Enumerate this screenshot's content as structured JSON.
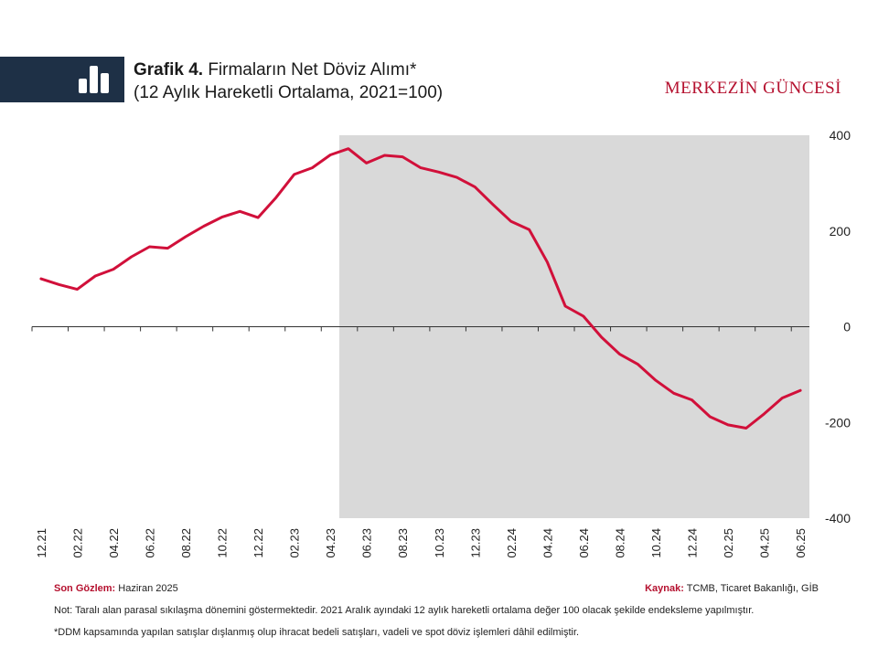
{
  "header": {
    "title_bold": "Grafik 4.",
    "title_rest": " Firmaların Net Döviz Alımı*",
    "subtitle": "(12 Aylık Hareketli Ortalama, 2021=100)",
    "brand": "MERKEZİN GÜNCESİ"
  },
  "footer": {
    "last_obs_label": "Son Gözlem:",
    "last_obs_value": " Haziran 2025",
    "source_label": "Kaynak:",
    "source_value": " TCMB, Ticaret Bakanlığı, GİB",
    "note": "Not: Taralı alan parasal sıkılaşma dönemini göstermektedir. 2021 Aralık ayındaki 12 aylık hareketli ortalama değer 100 olacak şekilde endeksleme yapılmıştır.",
    "footnote": "*DDM kapsamında yapılan satışlar dışlanmış olup ihracat bedeli satışları, vadeli ve spot döviz işlemleri dâhil edilmiştir."
  },
  "colors": {
    "line": "#d1103a",
    "shade": "#d9d9d9",
    "header_bar": "#1e3046",
    "brand": "#b5112f"
  },
  "chart_data": {
    "type": "line",
    "ylim": [
      -400,
      400
    ],
    "yticks": [
      "400",
      "200",
      "0",
      "-200",
      "-400"
    ],
    "ytick_values": [
      400,
      200,
      0,
      -200,
      -400
    ],
    "xtick_labels": [
      "12.21",
      "02.22",
      "04.22",
      "06.22",
      "08.22",
      "10.22",
      "12.22",
      "02.23",
      "04.23",
      "06.23",
      "08.23",
      "10.23",
      "12.23",
      "02.24",
      "04.24",
      "06.24",
      "08.24",
      "10.24",
      "12.24",
      "02.25",
      "04.25",
      "06.25"
    ],
    "shade_range_index": [
      17,
      42
    ],
    "series": [
      {
        "name": "Firmaların Net Döviz Alımı",
        "x": [
          "12.21",
          "01.22",
          "02.22",
          "03.22",
          "04.22",
          "05.22",
          "06.22",
          "07.22",
          "08.22",
          "09.22",
          "10.22",
          "11.22",
          "12.22",
          "01.23",
          "02.23",
          "03.23",
          "04.23",
          "05.23",
          "06.23",
          "07.23",
          "08.23",
          "09.23",
          "10.23",
          "11.23",
          "12.23",
          "01.24",
          "02.24",
          "03.24",
          "04.24",
          "05.24",
          "06.24",
          "07.24",
          "08.24",
          "09.24",
          "10.24",
          "11.24",
          "12.24",
          "01.25",
          "02.25",
          "03.25",
          "04.25",
          "05.25",
          "06.25"
        ],
        "values": [
          100,
          88,
          78,
          106,
          120,
          146,
          167,
          164,
          188,
          210,
          229,
          241,
          228,
          270,
          318,
          332,
          359,
          372,
          342,
          358,
          355,
          332,
          323,
          312,
          292,
          255,
          220,
          203,
          135,
          43,
          22,
          -22,
          -57,
          -78,
          -112,
          -139,
          -153,
          -188,
          -205,
          -212,
          -182,
          -149,
          -133
        ]
      }
    ]
  }
}
